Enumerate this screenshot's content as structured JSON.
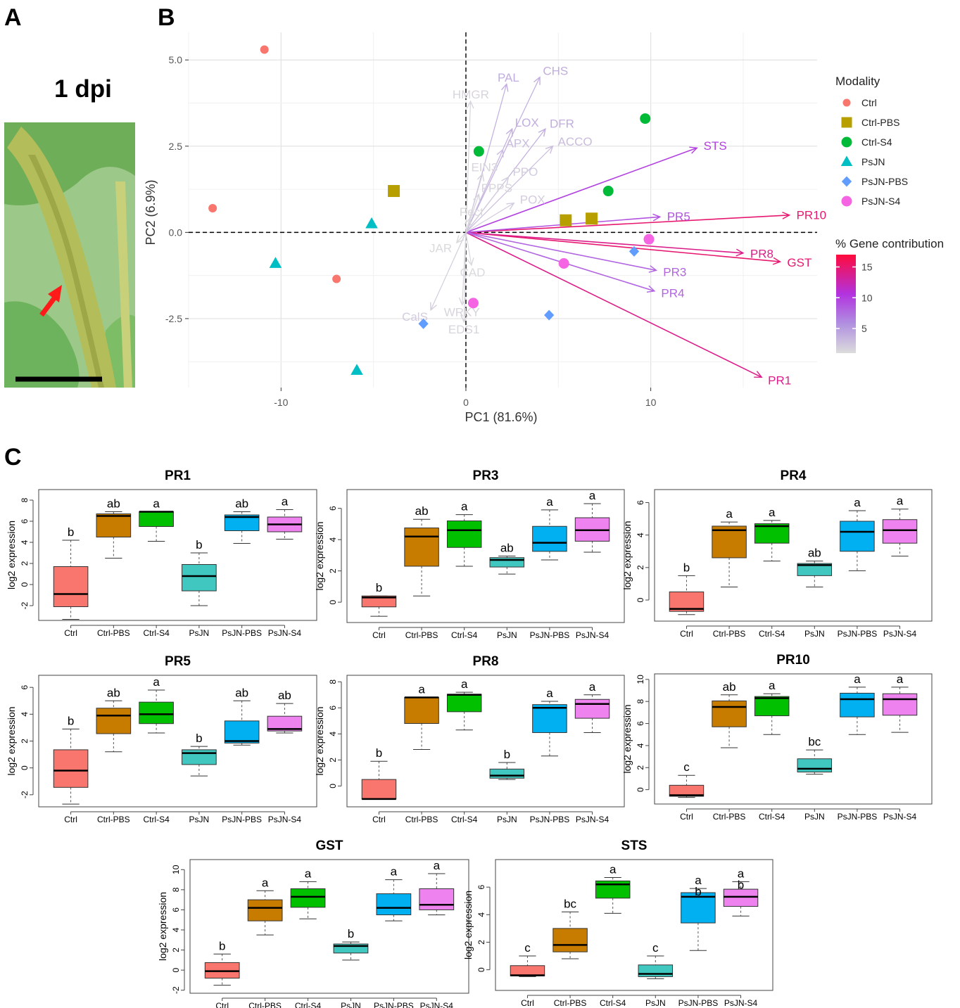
{
  "panel_labels": {
    "a": "A",
    "b": "B",
    "c": "C"
  },
  "photo": {
    "title": "1 dpi",
    "bg": "#9fc98a",
    "stem": "#aab552",
    "arrow_color": "#ff1a1a"
  },
  "chart_data": [
    {
      "type": "scatter",
      "panel": "B",
      "xlabel": "PC1 (81.6%)",
      "ylabel": "PC2 (6.9%)",
      "xlim": [
        -15,
        19
      ],
      "ylim": [
        -4.5,
        5.8
      ],
      "xticks": [
        -10,
        0,
        10
      ],
      "xtick_labels": [
        "-10",
        "0",
        "10"
      ],
      "yticks": [
        -2.5,
        0,
        2.5,
        5
      ],
      "ytick_labels": [
        "-2.5",
        "0.0",
        "2.5",
        "5.0"
      ],
      "grid": true,
      "legend_title": "Modality",
      "legend": [
        {
          "name": "Ctrl",
          "shape": "circle",
          "color": "#f8766d"
        },
        {
          "name": "Ctrl-PBS",
          "shape": "square",
          "color": "#b79f00"
        },
        {
          "name": "Ctrl-S4",
          "shape": "circle",
          "color": "#00ba38"
        },
        {
          "name": "PsJN",
          "shape": "triangle",
          "color": "#00bfc4"
        },
        {
          "name": "PsJN-PBS",
          "shape": "diamond",
          "color": "#619cff"
        },
        {
          "name": "PsJN-S4",
          "shape": "circle",
          "color": "#f564e3"
        }
      ],
      "points": [
        {
          "group": "Ctrl",
          "x": -10.9,
          "y": 5.3
        },
        {
          "group": "Ctrl",
          "x": -13.7,
          "y": 0.7
        },
        {
          "group": "Ctrl",
          "x": -7.0,
          "y": -1.35
        },
        {
          "group": "Ctrl-PBS",
          "x": -3.9,
          "y": 1.2
        },
        {
          "group": "Ctrl-PBS",
          "x": 5.4,
          "y": 0.35
        },
        {
          "group": "Ctrl-PBS",
          "x": 6.8,
          "y": 0.4
        },
        {
          "group": "Ctrl-S4",
          "x": 0.7,
          "y": 2.35
        },
        {
          "group": "Ctrl-S4",
          "x": 9.7,
          "y": 3.3
        },
        {
          "group": "Ctrl-S4",
          "x": 7.7,
          "y": 1.2
        },
        {
          "group": "PsJN",
          "x": -5.1,
          "y": 0.25
        },
        {
          "group": "PsJN",
          "x": -10.3,
          "y": -0.9
        },
        {
          "group": "PsJN",
          "x": -5.9,
          "y": -4.0
        },
        {
          "group": "PsJN-PBS",
          "x": -2.3,
          "y": -2.65
        },
        {
          "group": "PsJN-PBS",
          "x": 4.5,
          "y": -2.4
        },
        {
          "group": "PsJN-PBS",
          "x": 9.1,
          "y": -0.55
        },
        {
          "group": "PsJN-S4",
          "x": 0.4,
          "y": -2.05
        },
        {
          "group": "PsJN-S4",
          "x": 5.3,
          "y": -0.9
        },
        {
          "group": "PsJN-S4",
          "x": 9.9,
          "y": -0.2
        }
      ],
      "color_scale": {
        "title": "% Gene contribution",
        "ticks": [
          15,
          10,
          5
        ],
        "min": 1,
        "max": 17
      },
      "loadings": [
        {
          "gene": "PR10",
          "x": 17.5,
          "y": 0.5,
          "contribution": 15
        },
        {
          "gene": "GST",
          "x": 17.0,
          "y": -0.85,
          "contribution": 15
        },
        {
          "gene": "PR1",
          "x": 16.0,
          "y": -4.2,
          "contribution": 14
        },
        {
          "gene": "PR8",
          "x": 15.0,
          "y": -0.6,
          "contribution": 14
        },
        {
          "gene": "STS",
          "x": 12.5,
          "y": 2.45,
          "contribution": 10
        },
        {
          "gene": "PR5",
          "x": 10.5,
          "y": 0.45,
          "contribution": 9
        },
        {
          "gene": "PR3",
          "x": 10.3,
          "y": -1.1,
          "contribution": 8
        },
        {
          "gene": "PR4",
          "x": 10.2,
          "y": -1.7,
          "contribution": 8
        },
        {
          "gene": "CHS",
          "x": 4.0,
          "y": 4.5,
          "contribution": 4
        },
        {
          "gene": "PAL",
          "x": 2.2,
          "y": 4.3,
          "contribution": 4
        },
        {
          "gene": "DFR",
          "x": 4.3,
          "y": 3.0,
          "contribution": 4
        },
        {
          "gene": "LOX",
          "x": 2.5,
          "y": 3.0,
          "contribution": 4
        },
        {
          "gene": "APX",
          "x": 2.0,
          "y": 2.4,
          "contribution": 3
        },
        {
          "gene": "ACCO",
          "x": 4.7,
          "y": 2.5,
          "contribution": 3
        },
        {
          "gene": "PPO",
          "x": 2.3,
          "y": 1.6,
          "contribution": 2
        },
        {
          "gene": "POX",
          "x": 2.6,
          "y": 0.85,
          "contribution": 2
        },
        {
          "gene": "HMGR",
          "x": 0.25,
          "y": 3.8,
          "contribution": 1.5
        },
        {
          "gene": "EIN3",
          "x": 0.9,
          "y": 1.7,
          "contribution": 1.5
        },
        {
          "gene": "FPPS",
          "x": 0.7,
          "y": 1.1,
          "contribution": 1.5
        },
        {
          "gene": "Pect",
          "x": 0.2,
          "y": 0.4,
          "contribution": 1.2
        },
        {
          "gene": "JAR",
          "x": -0.5,
          "y": -0.3,
          "contribution": 1.2
        },
        {
          "gene": "CAD",
          "x": 0.3,
          "y": -0.95,
          "contribution": 1.2
        },
        {
          "gene": "WRKY",
          "x": -0.2,
          "y": -2.1,
          "contribution": 1.5
        },
        {
          "gene": "CalS",
          "x": -1.9,
          "y": -2.25,
          "contribution": 2
        },
        {
          "gene": "EDS1",
          "x": -0.1,
          "y": -2.6,
          "contribution": 1.5
        }
      ]
    },
    {
      "type": "box",
      "panel": "C",
      "ylabel": "log2 expression",
      "categories": [
        "Ctrl",
        "Ctrl-PBS",
        "Ctrl-S4",
        "PsJN",
        "PsJN-PBS",
        "PsJN-S4"
      ],
      "colors": [
        "#f8766d",
        "#c77c00",
        "#00c000",
        "#40c8c0",
        "#00b0f0",
        "#ee82ee"
      ],
      "plots": [
        {
          "title": "PR1",
          "ylim": [
            -3.4,
            9
          ],
          "yticks": [
            -2,
            0,
            2,
            4,
            6,
            8
          ],
          "boxes": [
            {
              "min": -3.3,
              "q1": -2.1,
              "median": -0.9,
              "q3": 1.7,
              "max": 4.2,
              "letter": "b"
            },
            {
              "min": 2.5,
              "q1": 4.5,
              "median": 6.5,
              "q3": 6.7,
              "max": 6.9,
              "letter": "ab"
            },
            {
              "min": 4.1,
              "q1": 5.5,
              "median": 6.9,
              "q3": 6.9,
              "max": 6.9,
              "letter": "a"
            },
            {
              "min": -2.0,
              "q1": -0.6,
              "median": 0.8,
              "q3": 1.9,
              "max": 3.0,
              "letter": "b"
            },
            {
              "min": 3.9,
              "q1": 5.1,
              "median": 6.4,
              "q3": 6.6,
              "max": 6.9,
              "letter": "ab"
            },
            {
              "min": 4.3,
              "q1": 5.0,
              "median": 5.7,
              "q3": 6.4,
              "max": 7.1,
              "letter": "a"
            }
          ]
        },
        {
          "title": "PR3",
          "ylim": [
            -1.3,
            7.2
          ],
          "yticks": [
            0,
            2,
            4,
            6
          ],
          "boxes": [
            {
              "min": -0.9,
              "q1": -0.3,
              "median": 0.3,
              "q3": 0.4,
              "max": 0.4,
              "letter": "b"
            },
            {
              "min": 0.4,
              "q1": 2.3,
              "median": 4.2,
              "q3": 4.75,
              "max": 5.3,
              "letter": "ab"
            },
            {
              "min": 2.3,
              "q1": 3.5,
              "median": 4.6,
              "q3": 5.2,
              "max": 5.6,
              "letter": "a"
            },
            {
              "min": 1.8,
              "q1": 2.25,
              "median": 2.7,
              "q3": 2.85,
              "max": 2.95,
              "letter": "ab"
            },
            {
              "min": 2.7,
              "q1": 3.25,
              "median": 3.8,
              "q3": 4.85,
              "max": 5.9,
              "letter": "a"
            },
            {
              "min": 3.2,
              "q1": 3.9,
              "median": 4.6,
              "q3": 5.4,
              "max": 6.3,
              "letter": "a"
            }
          ]
        },
        {
          "title": "PR4",
          "ylim": [
            -1.3,
            6.8
          ],
          "yticks": [
            0,
            2,
            4,
            6
          ],
          "boxes": [
            {
              "min": -0.9,
              "q1": -0.7,
              "median": -0.55,
              "q3": 0.5,
              "max": 1.5,
              "letter": "b"
            },
            {
              "min": 0.8,
              "q1": 2.6,
              "median": 4.3,
              "q3": 4.55,
              "max": 4.8,
              "letter": "a"
            },
            {
              "min": 2.4,
              "q1": 3.5,
              "median": 4.55,
              "q3": 4.7,
              "max": 4.9,
              "letter": "a"
            },
            {
              "min": 0.8,
              "q1": 1.5,
              "median": 2.15,
              "q3": 2.25,
              "max": 2.4,
              "letter": "ab"
            },
            {
              "min": 1.8,
              "q1": 3.0,
              "median": 4.2,
              "q3": 4.85,
              "max": 5.5,
              "letter": "a"
            },
            {
              "min": 2.7,
              "q1": 3.5,
              "median": 4.3,
              "q3": 4.95,
              "max": 5.6,
              "letter": "a"
            }
          ]
        },
        {
          "title": "PR5",
          "ylim": [
            -2.9,
            6.9
          ],
          "yticks": [
            -2,
            0,
            2,
            4,
            6
          ],
          "boxes": [
            {
              "min": -2.7,
              "q1": -1.45,
              "median": -0.2,
              "q3": 1.35,
              "max": 2.9,
              "letter": "b"
            },
            {
              "min": 1.2,
              "q1": 2.55,
              "median": 3.9,
              "q3": 4.45,
              "max": 5.0,
              "letter": "ab"
            },
            {
              "min": 2.6,
              "q1": 3.3,
              "median": 4.0,
              "q3": 4.9,
              "max": 5.8,
              "letter": "a"
            },
            {
              "min": -0.6,
              "q1": 0.25,
              "median": 1.1,
              "q3": 1.35,
              "max": 1.6,
              "letter": "b"
            },
            {
              "min": 1.7,
              "q1": 1.85,
              "median": 2.0,
              "q3": 3.5,
              "max": 5.0,
              "letter": "ab"
            },
            {
              "min": 2.6,
              "q1": 2.75,
              "median": 2.9,
              "q3": 3.85,
              "max": 4.8,
              "letter": "ab"
            }
          ]
        },
        {
          "title": "PR8",
          "ylim": [
            -1.6,
            8.5
          ],
          "yticks": [
            0,
            2,
            4,
            6,
            8
          ],
          "boxes": [
            {
              "min": -1.0,
              "q1": -1.0,
              "median": -1.0,
              "q3": 0.5,
              "max": 1.9,
              "letter": "b"
            },
            {
              "min": 2.8,
              "q1": 4.8,
              "median": 6.8,
              "q3": 6.8,
              "max": 6.8,
              "letter": "a"
            },
            {
              "min": 4.3,
              "q1": 5.7,
              "median": 7.0,
              "q3": 7.05,
              "max": 7.2,
              "letter": "a"
            },
            {
              "min": 0.5,
              "q1": 0.6,
              "median": 0.8,
              "q3": 1.3,
              "max": 1.8,
              "letter": "b"
            },
            {
              "min": 2.3,
              "q1": 4.1,
              "median": 6.0,
              "q3": 6.25,
              "max": 6.5,
              "letter": "a"
            },
            {
              "min": 4.1,
              "q1": 5.2,
              "median": 6.3,
              "q3": 6.65,
              "max": 7.0,
              "letter": "a"
            }
          ]
        },
        {
          "title": "PR10",
          "ylim": [
            -1.3,
            10.5
          ],
          "yticks": [
            0,
            2,
            4,
            6,
            8,
            10
          ],
          "boxes": [
            {
              "min": -0.7,
              "q1": -0.6,
              "median": -0.5,
              "q3": 0.4,
              "max": 1.3,
              "letter": "c"
            },
            {
              "min": 3.8,
              "q1": 5.7,
              "median": 7.5,
              "q3": 8.05,
              "max": 8.6,
              "letter": "ab"
            },
            {
              "min": 5.0,
              "q1": 6.7,
              "median": 8.3,
              "q3": 8.45,
              "max": 8.7,
              "letter": "a"
            },
            {
              "min": 1.4,
              "q1": 1.6,
              "median": 1.9,
              "q3": 2.8,
              "max": 3.6,
              "letter": "bc"
            },
            {
              "min": 5.0,
              "q1": 6.6,
              "median": 8.2,
              "q3": 8.75,
              "max": 9.3,
              "letter": "a"
            },
            {
              "min": 5.2,
              "q1": 6.75,
              "median": 8.2,
              "q3": 8.7,
              "max": 9.3,
              "letter": "a"
            }
          ]
        },
        {
          "title": "GST",
          "ylim": [
            -2.3,
            11
          ],
          "yticks": [
            -2,
            0,
            2,
            4,
            6,
            8,
            10
          ],
          "boxes": [
            {
              "min": -1.5,
              "q1": -0.8,
              "median": -0.1,
              "q3": 0.75,
              "max": 1.6,
              "letter": "b"
            },
            {
              "min": 3.5,
              "q1": 4.9,
              "median": 6.2,
              "q3": 7.0,
              "max": 7.9,
              "letter": "a"
            },
            {
              "min": 5.1,
              "q1": 6.25,
              "median": 7.3,
              "q3": 8.1,
              "max": 8.8,
              "letter": "a"
            },
            {
              "min": 1.0,
              "q1": 1.7,
              "median": 2.4,
              "q3": 2.6,
              "max": 2.8,
              "letter": "b"
            },
            {
              "min": 4.9,
              "q1": 5.5,
              "median": 6.2,
              "q3": 7.6,
              "max": 9.0,
              "letter": "a"
            },
            {
              "min": 5.5,
              "q1": 6.0,
              "median": 6.5,
              "q3": 8.1,
              "max": 9.6,
              "letter": "a"
            }
          ]
        },
        {
          "title": "STS",
          "ylim": [
            -1.5,
            8
          ],
          "yticks": [
            0,
            2,
            4,
            6
          ],
          "boxes": [
            {
              "min": -0.5,
              "q1": -0.45,
              "median": -0.4,
              "q3": 0.3,
              "max": 1.0,
              "letter": "c"
            },
            {
              "min": 0.8,
              "q1": 1.3,
              "median": 1.8,
              "q3": 3.0,
              "max": 4.2,
              "letter": "bc"
            },
            {
              "min": 4.1,
              "q1": 5.2,
              "median": 6.2,
              "q3": 6.45,
              "max": 6.7,
              "letter": "a"
            },
            {
              "min": -0.65,
              "q1": -0.5,
              "median": -0.3,
              "q3": 0.35,
              "max": 1.0,
              "letter": "c"
            },
            {
              "min": 1.4,
              "q1": 3.4,
              "median": 5.3,
              "q3": 5.6,
              "max": 5.9,
              "letter": "a\nb"
            },
            {
              "min": 3.9,
              "q1": 4.6,
              "median": 5.3,
              "q3": 5.85,
              "max": 6.4,
              "letter": "a\nb"
            }
          ]
        }
      ]
    }
  ]
}
